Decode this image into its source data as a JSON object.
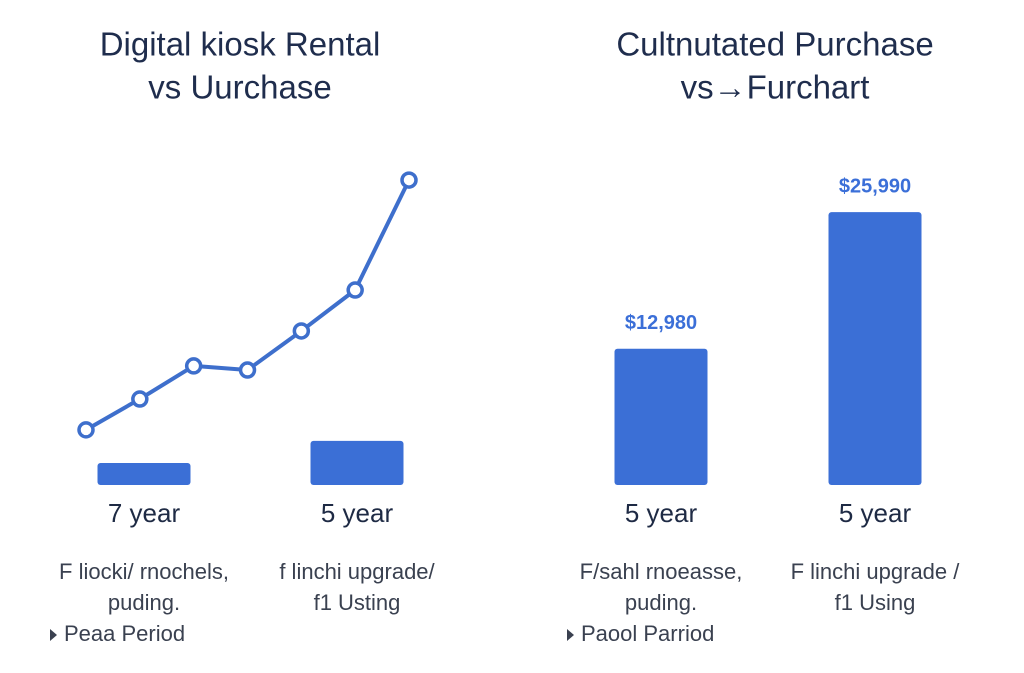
{
  "chart_data": [
    {
      "type": "combo",
      "title": [
        "Digital kiosk Rental",
        "vs Uurchase"
      ],
      "categories": [
        "7 year",
        "5 year"
      ],
      "values": [
        7,
        14
      ],
      "color": "#3b6fd6",
      "line": {
        "values": [
          17.5,
          27.3,
          37.8,
          36.5,
          48.9,
          61.9,
          96.8
        ],
        "color": "#3e6fcc"
      },
      "ylim": [
        0,
        100
      ],
      "notes": [
        [
          "F liocki/ rnochels,",
          "puding.",
          "Peaa Period"
        ],
        [
          "f linchi upgrade/",
          "f1 Usting"
        ]
      ]
    },
    {
      "type": "bar",
      "title": [
        "Cultnutated Purchase",
        "vs→Furchart"
      ],
      "categories": [
        "5 year",
        "5 year"
      ],
      "values": [
        12980,
        25990
      ],
      "value_labels": [
        "$12,980",
        "$25,990"
      ],
      "color": "#3b6fd6",
      "ylim": [
        0,
        30000
      ],
      "notes": [
        [
          "F/sahl rnoeasse,",
          "puding.",
          "Paool Parriod"
        ],
        [
          "F linchi upgrade /",
          "f1 Using"
        ]
      ]
    }
  ]
}
